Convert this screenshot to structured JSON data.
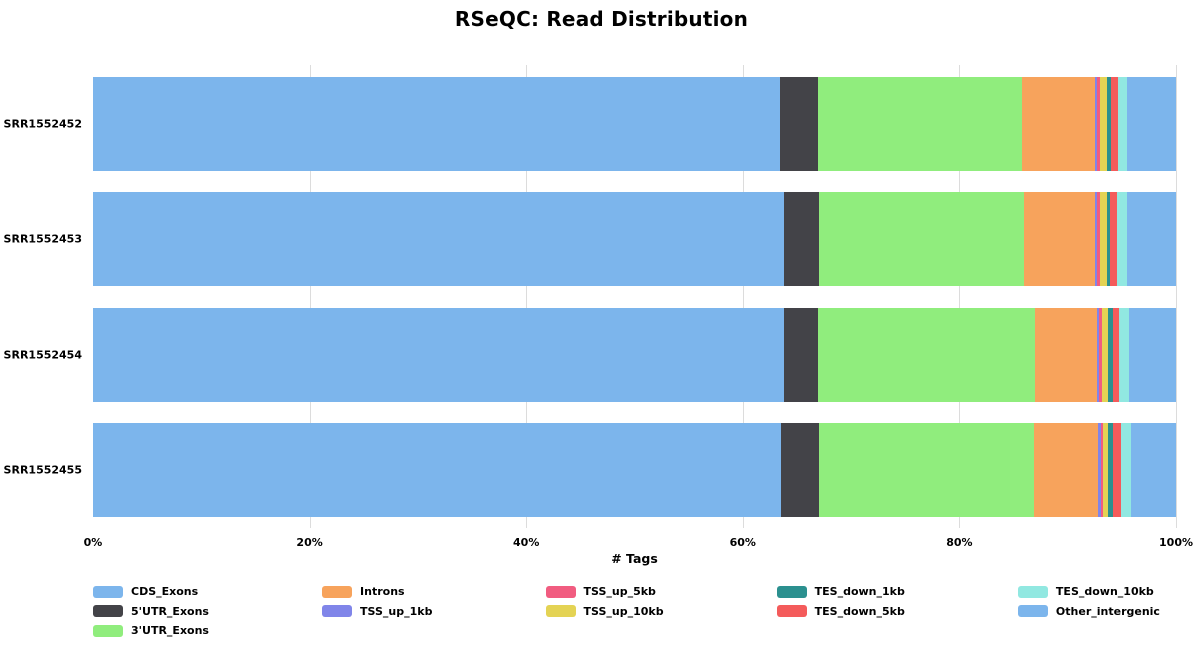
{
  "title": "RSeQC: Read Distribution",
  "chart_data": {
    "type": "bar",
    "orientation": "horizontal",
    "stacked": true,
    "title": "RSeQC: Read Distribution",
    "xlabel": "# Tags",
    "ylabel": "",
    "xlim": [
      0,
      100
    ],
    "xticks": [
      "0%",
      "20%",
      "40%",
      "60%",
      "80%",
      "100%"
    ],
    "grid": "vertical",
    "legend_position": "bottom",
    "categories": [
      "SRR1552452",
      "SRR1552453",
      "SRR1552454",
      "SRR1552455"
    ],
    "series": [
      {
        "name": "CDS_Exons",
        "color": "#7cb5ec",
        "values": [
          63.4,
          63.8,
          63.8,
          63.5
        ]
      },
      {
        "name": "5'UTR_Exons",
        "color": "#434348",
        "values": [
          3.5,
          3.2,
          3.1,
          3.5
        ]
      },
      {
        "name": "3'UTR_Exons",
        "color": "#90ed7d",
        "values": [
          18.9,
          19.0,
          20.1,
          19.9
        ]
      },
      {
        "name": "Introns",
        "color": "#f7a35c",
        "values": [
          6.7,
          6.5,
          5.7,
          5.9
        ]
      },
      {
        "name": "TSS_up_1kb",
        "color": "#8085e9",
        "values": [
          0.2,
          0.2,
          0.15,
          0.3
        ]
      },
      {
        "name": "TSS_up_5kb",
        "color": "#f15c80",
        "values": [
          0.3,
          0.3,
          0.35,
          0.2
        ]
      },
      {
        "name": "TSS_up_10kb",
        "color": "#e4d354",
        "values": [
          0.65,
          0.6,
          0.55,
          0.45
        ]
      },
      {
        "name": "TES_down_1kb",
        "color": "#2b908f",
        "values": [
          0.35,
          0.3,
          0.45,
          0.45
        ]
      },
      {
        "name": "TES_down_5kb",
        "color": "#f45b5b",
        "values": [
          0.65,
          0.7,
          0.55,
          0.75
        ]
      },
      {
        "name": "TES_down_10kb",
        "color": "#91e8e1",
        "values": [
          0.85,
          0.85,
          0.9,
          0.9
        ]
      },
      {
        "name": "Other_intergenic",
        "color": "#7cb5ec",
        "values": [
          4.5,
          4.55,
          4.35,
          4.15
        ]
      }
    ]
  },
  "legend": {
    "columns": [
      [
        "CDS_Exons",
        "5'UTR_Exons",
        "3'UTR_Exons"
      ],
      [
        "Introns",
        "TSS_up_1kb"
      ],
      [
        "TSS_up_5kb",
        "TSS_up_10kb"
      ],
      [
        "TES_down_1kb",
        "TES_down_5kb"
      ],
      [
        "TES_down_10kb",
        "Other_intergenic"
      ]
    ]
  },
  "colors": {
    "background": "#ffffff",
    "gridline": "#dcdcdc",
    "text": "#000000"
  }
}
